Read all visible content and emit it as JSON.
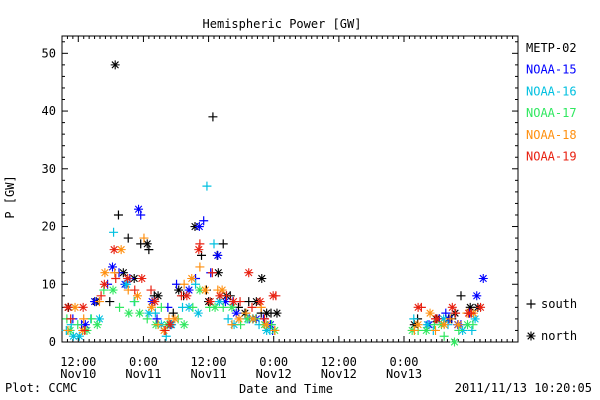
{
  "footer": {
    "plot_credit": "Plot: CCMC",
    "timestamp": "2011/11/13 10:20:05"
  },
  "chart_data": {
    "type": "scatter",
    "title": "Hemispheric Power [GW]",
    "xlabel": "Date and Time",
    "ylabel": "P [GW]",
    "x_unit": "hours since 2011-11-10 00:00 UT",
    "xlim": [
      9,
      93
    ],
    "ylim": [
      0,
      53
    ],
    "y_ticks": [
      0,
      10,
      20,
      30,
      40,
      50
    ],
    "x_ticks": [
      {
        "x": 12,
        "line1": "12:00",
        "line2": "Nov10"
      },
      {
        "x": 24,
        "line1": "0:00",
        "line2": "Nov11"
      },
      {
        "x": 36,
        "line1": "12:00",
        "line2": "Nov11"
      },
      {
        "x": 48,
        "line1": "0:00",
        "line2": "Nov12"
      },
      {
        "x": 60,
        "line1": "12:00",
        "line2": "Nov12"
      },
      {
        "x": 72,
        "line1": "0:00",
        "line2": "Nov13"
      }
    ],
    "marker_legend": [
      {
        "symbol": "+",
        "label": "south"
      },
      {
        "symbol": "*",
        "label": "north"
      }
    ],
    "series": [
      {
        "name": "METP-02",
        "color": "#000000",
        "south": [
          [
            17.8,
            7
          ],
          [
            19.4,
            22
          ],
          [
            21.2,
            18
          ],
          [
            23.5,
            17
          ],
          [
            25,
            16
          ],
          [
            26,
            8
          ],
          [
            29.5,
            5
          ],
          [
            31.4,
            8
          ],
          [
            34.7,
            15
          ],
          [
            35.6,
            9
          ],
          [
            36.8,
            39
          ],
          [
            37.6,
            15
          ],
          [
            38.7,
            17
          ],
          [
            40,
            8
          ],
          [
            41.5,
            6
          ],
          [
            43.4,
            7
          ],
          [
            45.7,
            5
          ],
          [
            47.5,
            5
          ],
          [
            74.5,
            4
          ],
          [
            78.5,
            4
          ],
          [
            80.8,
            4
          ],
          [
            82.5,
            8
          ],
          [
            84,
            5
          ]
        ],
        "north": [
          [
            10.2,
            6
          ],
          [
            15.3,
            7
          ],
          [
            18.8,
            48
          ],
          [
            20.3,
            12
          ],
          [
            22.3,
            11
          ],
          [
            24.7,
            17
          ],
          [
            26.7,
            8
          ],
          [
            30.5,
            9
          ],
          [
            33.5,
            20
          ],
          [
            36,
            7
          ],
          [
            37.8,
            12
          ],
          [
            39.3,
            8
          ],
          [
            42.7,
            5
          ],
          [
            44.8,
            7
          ],
          [
            45.8,
            11
          ],
          [
            46.7,
            5
          ],
          [
            48.6,
            5
          ],
          [
            73.9,
            3
          ],
          [
            77.9,
            4
          ],
          [
            80.2,
            4
          ],
          [
            81.4,
            5
          ],
          [
            84.2,
            6
          ],
          [
            85.6,
            6
          ]
        ]
      },
      {
        "name": "NOAA-15",
        "color": "#0000ff",
        "south": [
          [
            11,
            4
          ],
          [
            12.6,
            3
          ],
          [
            17.4,
            10
          ],
          [
            19.5,
            12
          ],
          [
            21.5,
            11
          ],
          [
            23.5,
            22
          ],
          [
            26.5,
            4
          ],
          [
            28.5,
            6
          ],
          [
            30.1,
            10
          ],
          [
            33.6,
            11
          ],
          [
            35.1,
            21
          ],
          [
            36.4,
            12
          ],
          [
            40.5,
            7
          ],
          [
            43.5,
            4
          ],
          [
            46.1,
            4
          ],
          [
            47.8,
            2
          ],
          [
            78.5,
            4
          ],
          [
            79.7,
            5
          ],
          [
            82.5,
            3
          ],
          [
            84.1,
            5
          ]
        ],
        "north": [
          [
            13.3,
            3
          ],
          [
            15,
            7
          ],
          [
            18.3,
            13
          ],
          [
            20.6,
            10
          ],
          [
            23.1,
            23
          ],
          [
            25.6,
            7
          ],
          [
            29.1,
            3
          ],
          [
            32.4,
            9
          ],
          [
            34.3,
            20
          ],
          [
            37.7,
            15
          ],
          [
            39.1,
            7
          ],
          [
            41.1,
            5
          ],
          [
            44.8,
            4
          ],
          [
            47.4,
            3
          ],
          [
            76.6,
            3
          ],
          [
            80.3,
            4
          ],
          [
            81.9,
            3
          ],
          [
            85.4,
            8
          ],
          [
            86.6,
            11
          ]
        ]
      },
      {
        "name": "NOAA-16",
        "color": "#00c0e0",
        "south": [
          [
            9.8,
            2
          ],
          [
            10.7,
            3
          ],
          [
            14.3,
            4
          ],
          [
            18.5,
            19
          ],
          [
            22.3,
            7
          ],
          [
            26.2,
            5
          ],
          [
            28.2,
            1
          ],
          [
            31.2,
            6
          ],
          [
            33.6,
            10
          ],
          [
            35.7,
            27
          ],
          [
            37,
            17
          ],
          [
            39.6,
            4
          ],
          [
            42.9,
            4
          ],
          [
            45.3,
            3
          ],
          [
            47.3,
            2
          ],
          [
            73.8,
            4
          ],
          [
            77.4,
            2
          ],
          [
            80.1,
            3
          ],
          [
            84.5,
            2
          ]
        ],
        "north": [
          [
            11.1,
            1
          ],
          [
            12.2,
            1
          ],
          [
            15.9,
            4
          ],
          [
            20.9,
            10
          ],
          [
            25,
            5
          ],
          [
            27.3,
            3
          ],
          [
            29.2,
            3
          ],
          [
            32.4,
            6
          ],
          [
            34.1,
            5
          ],
          [
            38,
            7
          ],
          [
            40.7,
            3
          ],
          [
            44.1,
            4
          ],
          [
            46.7,
            2
          ],
          [
            76.3,
            3
          ],
          [
            79.3,
            4
          ],
          [
            82.8,
            2
          ],
          [
            85.1,
            4
          ]
        ]
      },
      {
        "name": "NOAA-17",
        "color": "#30e860",
        "south": [
          [
            9.9,
            4
          ],
          [
            11.9,
            3
          ],
          [
            14.4,
            4
          ],
          [
            16.7,
            9
          ],
          [
            19.6,
            6
          ],
          [
            22.4,
            7
          ],
          [
            24.7,
            4
          ],
          [
            27.3,
            6
          ],
          [
            30.4,
            4
          ],
          [
            33.1,
            6
          ],
          [
            36.2,
            6
          ],
          [
            38.7,
            6
          ],
          [
            41.9,
            3
          ],
          [
            44.7,
            4
          ],
          [
            47.6,
            3
          ],
          [
            74.6,
            2
          ],
          [
            77.6,
            3
          ],
          [
            79.4,
            1
          ],
          [
            82.1,
            2
          ],
          [
            84.7,
            3
          ]
        ],
        "north": [
          [
            10.5,
            2
          ],
          [
            13.6,
            2
          ],
          [
            15.5,
            3
          ],
          [
            18.4,
            9
          ],
          [
            21.3,
            5
          ],
          [
            23.3,
            5
          ],
          [
            26.3,
            3
          ],
          [
            28.4,
            3
          ],
          [
            31.5,
            3
          ],
          [
            34.4,
            9
          ],
          [
            37.2,
            6
          ],
          [
            40.3,
            6
          ],
          [
            43.2,
            4
          ],
          [
            46.3,
            3
          ],
          [
            48.2,
            2
          ],
          [
            73.5,
            2
          ],
          [
            76.1,
            2
          ],
          [
            78.9,
            3
          ],
          [
            81.3,
            0
          ],
          [
            83.7,
            3
          ]
        ]
      },
      {
        "name": "NOAA-18",
        "color": "#ff9010",
        "south": [
          [
            10.1,
            2
          ],
          [
            13,
            4
          ],
          [
            15.9,
            7
          ],
          [
            18.7,
            12
          ],
          [
            21.2,
            9
          ],
          [
            24.1,
            18
          ],
          [
            26.7,
            3
          ],
          [
            28.7,
            4
          ],
          [
            31.5,
            10
          ],
          [
            34.4,
            13
          ],
          [
            37.7,
            9
          ],
          [
            40.3,
            3
          ],
          [
            42.9,
            5
          ],
          [
            45.7,
            6
          ],
          [
            48.2,
            2
          ],
          [
            73.9,
            2
          ],
          [
            77.8,
            2
          ],
          [
            80.5,
            4
          ],
          [
            83.6,
            5
          ]
        ],
        "north": [
          [
            11.4,
            6
          ],
          [
            12.8,
            2
          ],
          [
            16.9,
            12
          ],
          [
            19.9,
            16
          ],
          [
            22.9,
            8
          ],
          [
            25.5,
            6
          ],
          [
            27.8,
            2
          ],
          [
            29.8,
            4
          ],
          [
            32.9,
            11
          ],
          [
            35.4,
            9
          ],
          [
            38.5,
            9
          ],
          [
            41.6,
            4
          ],
          [
            44.2,
            4
          ],
          [
            46.6,
            3
          ],
          [
            74.6,
            3
          ],
          [
            76.8,
            5
          ],
          [
            79.4,
            3
          ],
          [
            82,
            3
          ],
          [
            84.8,
            5
          ]
        ]
      },
      {
        "name": "NOAA-19",
        "color": "#e82010",
        "south": [
          [
            10.6,
            4
          ],
          [
            13.2,
            2
          ],
          [
            16.2,
            8
          ],
          [
            18.9,
            11
          ],
          [
            22.4,
            9
          ],
          [
            25.4,
            9
          ],
          [
            28,
            2
          ],
          [
            31,
            8
          ],
          [
            34.4,
            17
          ],
          [
            36.7,
            12
          ],
          [
            39.3,
            8
          ],
          [
            41.8,
            7
          ],
          [
            44,
            6
          ],
          [
            46.3,
            4
          ],
          [
            48.4,
            8
          ],
          [
            75.2,
            6
          ],
          [
            77.8,
            4
          ],
          [
            81.5,
            5
          ],
          [
            84.4,
            5
          ]
        ],
        "north": [
          [
            10.1,
            6
          ],
          [
            12.9,
            6
          ],
          [
            16.8,
            10
          ],
          [
            18.6,
            16
          ],
          [
            21.1,
            11
          ],
          [
            23.7,
            11
          ],
          [
            26.1,
            7
          ],
          [
            28.9,
            3
          ],
          [
            32,
            8
          ],
          [
            34.2,
            16
          ],
          [
            36.3,
            7
          ],
          [
            38.1,
            8
          ],
          [
            40.6,
            7
          ],
          [
            43.4,
            12
          ],
          [
            45.5,
            7
          ],
          [
            47.9,
            8
          ],
          [
            74.6,
            6
          ],
          [
            78.1,
            4
          ],
          [
            80.9,
            6
          ],
          [
            83.9,
            5
          ],
          [
            86.1,
            6
          ]
        ]
      }
    ]
  }
}
